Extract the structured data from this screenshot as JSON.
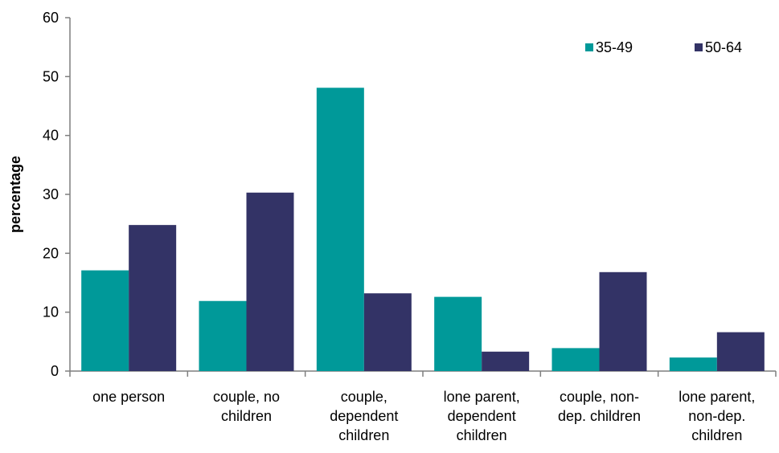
{
  "chart_data": {
    "type": "bar",
    "title": "",
    "xlabel": "",
    "ylabel": "percentage",
    "ylim": [
      0,
      60
    ],
    "yticks": [
      "0",
      "10",
      "20",
      "30",
      "40",
      "50",
      "60"
    ],
    "grid": false,
    "legend_position": "top-right",
    "categories": [
      [
        "one person"
      ],
      [
        "couple, no",
        "children"
      ],
      [
        "couple,",
        "dependent",
        "children"
      ],
      [
        "lone parent,",
        "dependent",
        "children"
      ],
      [
        "couple, non-",
        "dep. children"
      ],
      [
        "lone parent,",
        "non-dep.",
        "children"
      ]
    ],
    "series": [
      {
        "name": "35-49",
        "color": "#009999",
        "values": [
          17.1,
          11.9,
          48.1,
          12.6,
          3.9,
          2.3
        ]
      },
      {
        "name": "50-64",
        "color": "#333366",
        "values": [
          24.8,
          30.3,
          13.2,
          3.3,
          16.8,
          6.6
        ]
      }
    ]
  }
}
